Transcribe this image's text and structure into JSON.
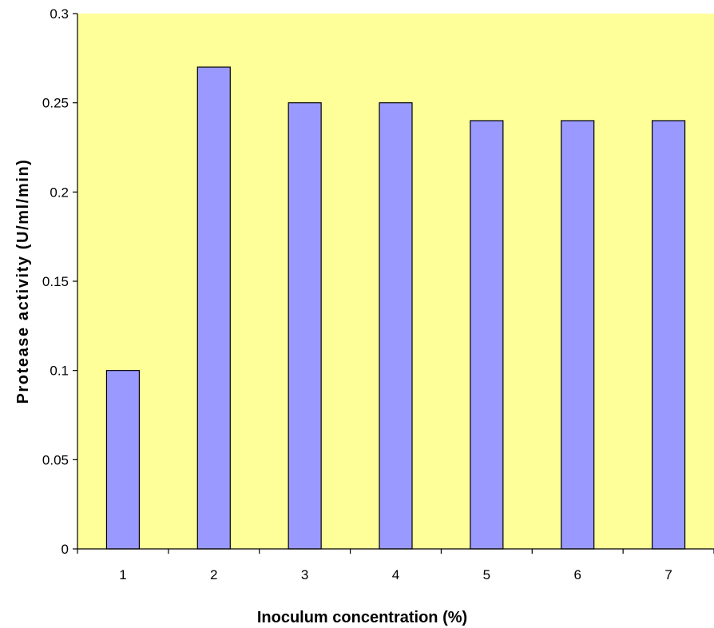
{
  "colors": {
    "plot_background": "#FFFF99",
    "bar_fill": "#9999FF",
    "bar_stroke": "#000000",
    "axis": "#000000"
  },
  "chart_data": {
    "type": "bar",
    "title": "",
    "xlabel": "Inoculum concentration (%)",
    "ylabel": "Protease activity (U/ml/min)",
    "categories": [
      "1",
      "2",
      "3",
      "4",
      "5",
      "6",
      "7"
    ],
    "values": [
      0.1,
      0.27,
      0.25,
      0.25,
      0.24,
      0.24,
      0.24
    ],
    "ylim": [
      0,
      0.3
    ],
    "yticks": [
      "0",
      "0.05",
      "0.1",
      "0.15",
      "0.2",
      "0.25",
      "0.3"
    ],
    "ytick_values": [
      0,
      0.05,
      0.1,
      0.15,
      0.2,
      0.25,
      0.3
    ],
    "grid": false,
    "legend": "none"
  }
}
